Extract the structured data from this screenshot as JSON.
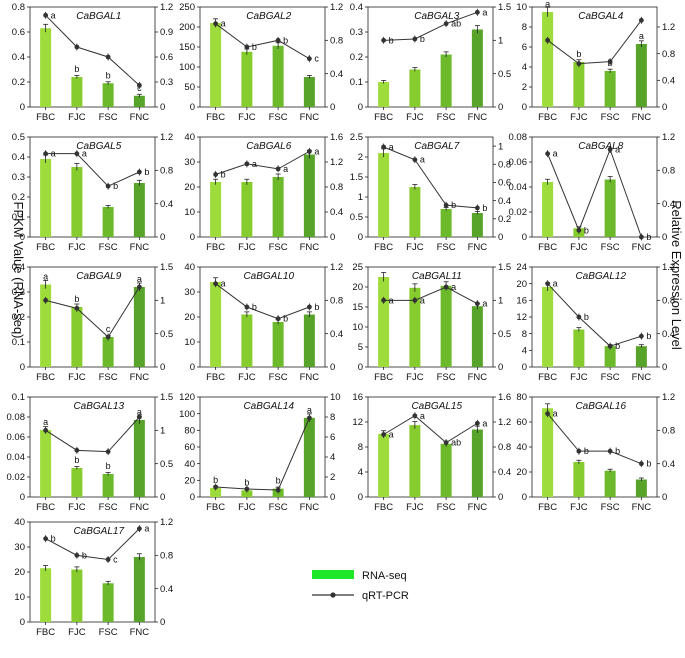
{
  "figure": {
    "left_axis_title": "FPKM Value (RNA-seq)",
    "right_axis_title": "Relative Expression Level",
    "legend": {
      "rna_seq": "RNA-seq",
      "qrt_pcr": "qRT-PCR"
    },
    "colors": {
      "FBC": "#9ddc3a",
      "FJC": "#86cc2e",
      "FSC": "#6cb92b",
      "FNC": "#58a42a",
      "line": "#333333"
    }
  },
  "chart_data": [
    {
      "type": "bar+line",
      "title": "CaBGAL1",
      "categories": [
        "FBC",
        "FJC",
        "FSC",
        "FNC"
      ],
      "left_ticks": [
        "0",
        "0.2",
        "0.4",
        "0.6",
        "0.8"
      ],
      "right_ticks": [
        "0",
        "0.3",
        "0.6",
        "0.9",
        "1.2"
      ],
      "ylim_left": [
        0,
        0.8
      ],
      "ylim_right": [
        0,
        1.2
      ],
      "bar_values": [
        0.63,
        0.24,
        0.19,
        0.09
      ],
      "line_values": [
        1.1,
        0.72,
        0.6,
        0.26
      ],
      "bar_letters": [
        "",
        "b",
        "b",
        "c"
      ],
      "line_letters": [
        "a",
        "",
        "",
        ""
      ]
    },
    {
      "type": "bar+line",
      "title": "CaBGAL2",
      "categories": [
        "FBC",
        "FJC",
        "FSC",
        "FNC"
      ],
      "left_ticks": [
        "0",
        "50",
        "100",
        "150",
        "200",
        "250"
      ],
      "right_ticks": [
        "0",
        "0.4",
        "0.8",
        "1.2"
      ],
      "ylim_left": [
        0,
        250
      ],
      "ylim_right": [
        0,
        1.2
      ],
      "bar_values": [
        210,
        138,
        153,
        75
      ],
      "line_values": [
        1.0,
        0.72,
        0.8,
        0.58
      ],
      "bar_letters": [
        "",
        "",
        "",
        ""
      ],
      "line_letters": [
        "a",
        "b",
        "b",
        "c"
      ]
    },
    {
      "type": "bar+line",
      "title": "CaBGAL3",
      "categories": [
        "FBC",
        "FJC",
        "FSC",
        "FNC"
      ],
      "left_ticks": [
        "0",
        "0.1",
        "0.2",
        "0.3",
        "0.4"
      ],
      "right_ticks": [
        "0",
        "0.5",
        "1",
        "1.5"
      ],
      "ylim_left": [
        0,
        0.4
      ],
      "ylim_right": [
        0,
        1.5
      ],
      "bar_values": [
        0.1,
        0.15,
        0.21,
        0.31
      ],
      "line_values": [
        1.0,
        1.02,
        1.25,
        1.42
      ],
      "bar_letters": [
        "",
        "",
        "",
        ""
      ],
      "line_letters": [
        "b",
        "b",
        "ab",
        "a"
      ]
    },
    {
      "type": "bar+line",
      "title": "CaBGAL4",
      "categories": [
        "FBC",
        "FJC",
        "FSC",
        "FNC"
      ],
      "left_ticks": [
        "0",
        "2",
        "4",
        "6",
        "8",
        "10"
      ],
      "right_ticks": [
        "0",
        "0.4",
        "0.8",
        "1.2"
      ],
      "ylim_left": [
        0,
        10
      ],
      "ylim_right": [
        0,
        1.5
      ],
      "bar_values": [
        9.5,
        4.5,
        3.6,
        6.3
      ],
      "line_values": [
        1.0,
        0.65,
        0.68,
        1.3
      ],
      "bar_letters": [
        "a",
        "b",
        "b",
        "a"
      ],
      "line_letters": [
        "",
        "",
        "",
        ""
      ]
    },
    {
      "type": "bar+line",
      "title": "CaBGAL5",
      "categories": [
        "FBC",
        "FJC",
        "FSC",
        "FNC"
      ],
      "left_ticks": [
        "0",
        "0.1",
        "0.2",
        "0.3",
        "0.4",
        "0.5"
      ],
      "right_ticks": [
        "0",
        "0.4",
        "0.8",
        "1.2"
      ],
      "ylim_left": [
        0,
        0.5
      ],
      "ylim_right": [
        0,
        1.2
      ],
      "bar_values": [
        0.39,
        0.35,
        0.15,
        0.27
      ],
      "line_values": [
        1.0,
        1.0,
        0.61,
        0.78
      ],
      "bar_letters": [
        "",
        "",
        "",
        ""
      ],
      "line_letters": [
        "a",
        "a",
        "b",
        "b"
      ]
    },
    {
      "type": "bar+line",
      "title": "CaBGAL6",
      "categories": [
        "FBC",
        "FJC",
        "FSC",
        "FNC"
      ],
      "left_ticks": [
        "0",
        "10",
        "20",
        "30",
        "40"
      ],
      "right_ticks": [
        "0",
        "0.4",
        "0.8",
        "1.2",
        "1.6"
      ],
      "ylim_left": [
        0,
        40
      ],
      "ylim_right": [
        0,
        1.6
      ],
      "bar_values": [
        22,
        22,
        24,
        33
      ],
      "line_values": [
        1.0,
        1.17,
        1.09,
        1.37
      ],
      "bar_letters": [
        "",
        "",
        "",
        ""
      ],
      "line_letters": [
        "b",
        "a",
        "a",
        "a"
      ]
    },
    {
      "type": "bar+line",
      "title": "CaBGAL7",
      "categories": [
        "FBC",
        "FJC",
        "FSC",
        "FNC"
      ],
      "left_ticks": [
        "0",
        "0.5",
        "1",
        "1.5",
        "2",
        "2.5"
      ],
      "right_ticks": [
        "0",
        "0.2",
        "0.4",
        "0.6",
        "0.8",
        "1"
      ],
      "ylim_left": [
        0,
        2.5
      ],
      "ylim_right": [
        0,
        1.1
      ],
      "bar_values": [
        2.1,
        1.25,
        0.7,
        0.6
      ],
      "line_values": [
        0.99,
        0.85,
        0.35,
        0.32
      ],
      "bar_letters": [
        "",
        "",
        "",
        ""
      ],
      "line_letters": [
        "a",
        "a",
        "b",
        "b"
      ]
    },
    {
      "type": "bar+line",
      "title": "CaBGAL8",
      "categories": [
        "FBC",
        "FJC",
        "FSC",
        "FNC"
      ],
      "left_ticks": [
        "0",
        "0.02",
        "0.04",
        "0.06",
        "0.08"
      ],
      "right_ticks": [
        "0",
        "0.4",
        "0.8",
        "1.2"
      ],
      "ylim_left": [
        0,
        0.08
      ],
      "ylim_right": [
        0,
        1.2
      ],
      "bar_values": [
        0.044,
        0.007,
        0.046,
        0.0
      ],
      "line_values": [
        1.0,
        0.08,
        1.05,
        0.0
      ],
      "bar_letters": [
        "",
        "",
        "",
        ""
      ],
      "line_letters": [
        "a",
        "b",
        "a",
        "b"
      ]
    },
    {
      "type": "bar+line",
      "title": "CaBGAL9",
      "categories": [
        "FBC",
        "FJC",
        "FSC",
        "FNC"
      ],
      "left_ticks": [
        "0",
        "0.1",
        "0.2",
        "0.3",
        "0.4"
      ],
      "right_ticks": [
        "0",
        "0.5",
        "1",
        "1.5"
      ],
      "ylim_left": [
        0,
        0.4
      ],
      "ylim_right": [
        0,
        1.5
      ],
      "bar_values": [
        0.33,
        0.24,
        0.12,
        0.32
      ],
      "line_values": [
        1.0,
        0.88,
        0.45,
        1.2
      ],
      "bar_letters": [
        "a",
        "b",
        "c",
        "a"
      ],
      "line_letters": [
        "",
        "",
        "",
        ""
      ]
    },
    {
      "type": "bar+line",
      "title": "CaBGAL10",
      "categories": [
        "FBC",
        "FJC",
        "FSC",
        "FNC"
      ],
      "left_ticks": [
        "0",
        "10",
        "20",
        "30",
        "40"
      ],
      "right_ticks": [
        "0",
        "0.4",
        "0.8",
        "1.2"
      ],
      "ylim_left": [
        0,
        40
      ],
      "ylim_right": [
        0,
        1.2
      ],
      "bar_values": [
        34,
        21,
        18,
        21
      ],
      "line_values": [
        1.0,
        0.72,
        0.58,
        0.72
      ],
      "bar_letters": [
        "",
        "",
        "",
        ""
      ],
      "line_letters": [
        "a",
        "b",
        "b",
        "b"
      ]
    },
    {
      "type": "bar+line",
      "title": "CaBGAL11",
      "categories": [
        "FBC",
        "FJC",
        "FSC",
        "FNC"
      ],
      "left_ticks": [
        "0",
        "5",
        "10",
        "15",
        "20",
        "25"
      ],
      "right_ticks": [
        "0",
        "0.5",
        "1",
        "1.5"
      ],
      "ylim_left": [
        0,
        25
      ],
      "ylim_right": [
        0,
        1.5
      ],
      "bar_values": [
        22.5,
        19.8,
        20.3,
        15.2
      ],
      "line_values": [
        1.0,
        1.0,
        1.2,
        0.95
      ],
      "bar_letters": [
        "",
        "",
        "",
        ""
      ],
      "line_letters": [
        "a",
        "a",
        "a",
        "a"
      ]
    },
    {
      "type": "bar+line",
      "title": "CaBGAL12",
      "categories": [
        "FBC",
        "FJC",
        "FSC",
        "FNC"
      ],
      "left_ticks": [
        "0",
        "4",
        "8",
        "12",
        "16",
        "20",
        "24"
      ],
      "right_ticks": [
        "0",
        "0.4",
        "0.8",
        "1.2"
      ],
      "ylim_left": [
        0,
        24
      ],
      "ylim_right": [
        0,
        1.2
      ],
      "bar_values": [
        19.2,
        9.0,
        5.0,
        5.0
      ],
      "line_values": [
        1.0,
        0.6,
        0.25,
        0.37
      ],
      "bar_letters": [
        "",
        "",
        "",
        ""
      ],
      "line_letters": [
        "a",
        "b",
        "b",
        "b"
      ]
    },
    {
      "type": "bar+line",
      "title": "CaBGAL13",
      "categories": [
        "FBC",
        "FJC",
        "FSC",
        "FNC"
      ],
      "left_ticks": [
        "0",
        "0.02",
        "0.04",
        "0.06",
        "0.08",
        "0.1"
      ],
      "right_ticks": [
        "0",
        "0.5",
        "1",
        "1.5"
      ],
      "ylim_left": [
        0,
        0.1
      ],
      "ylim_right": [
        0,
        1.5
      ],
      "bar_values": [
        0.067,
        0.029,
        0.023,
        0.077
      ],
      "line_values": [
        1.0,
        0.7,
        0.68,
        1.2
      ],
      "bar_letters": [
        "a",
        "b",
        "b",
        "a"
      ],
      "line_letters": [
        "",
        "",
        "",
        ""
      ]
    },
    {
      "type": "bar+line",
      "title": "CaBGAL14",
      "categories": [
        "FBC",
        "FJC",
        "FSC",
        "FNC"
      ],
      "left_ticks": [
        "0",
        "20",
        "40",
        "60",
        "80",
        "100",
        "120"
      ],
      "right_ticks": [
        "0",
        "2",
        "4",
        "6",
        "8",
        "10"
      ],
      "ylim_left": [
        0,
        120
      ],
      "ylim_right": [
        0,
        10
      ],
      "bar_values": [
        11,
        8,
        10,
        95
      ],
      "line_values": [
        1.0,
        0.8,
        0.7,
        7.9
      ],
      "bar_letters": [
        "b",
        "b",
        "b",
        "a"
      ],
      "line_letters": [
        "",
        "",
        "",
        ""
      ]
    },
    {
      "type": "bar+line",
      "title": "CaBGAL15",
      "categories": [
        "FBC",
        "FJC",
        "FSC",
        "FNC"
      ],
      "left_ticks": [
        "0",
        "4",
        "8",
        "12",
        "16"
      ],
      "right_ticks": [
        "0",
        "0.4",
        "0.8",
        "1.2",
        "1.6"
      ],
      "ylim_left": [
        0,
        16
      ],
      "ylim_right": [
        0,
        1.6
      ],
      "bar_values": [
        10.1,
        11.5,
        8.5,
        10.8
      ],
      "line_values": [
        1.0,
        1.3,
        0.87,
        1.18
      ],
      "bar_letters": [
        "",
        "",
        "",
        ""
      ],
      "line_letters": [
        "a",
        "a",
        "ab",
        "a"
      ]
    },
    {
      "type": "bar+line",
      "title": "CaBGAL16",
      "categories": [
        "FBC",
        "FJC",
        "FSC",
        "FNC"
      ],
      "left_ticks": [
        "0",
        "20",
        "40",
        "60",
        "80"
      ],
      "right_ticks": [
        "0",
        "0.4",
        "0.8",
        "1.2"
      ],
      "ylim_left": [
        0,
        80
      ],
      "ylim_right": [
        0,
        1.2
      ],
      "bar_values": [
        71,
        28,
        21,
        14
      ],
      "line_values": [
        1.0,
        0.55,
        0.55,
        0.4
      ],
      "bar_letters": [
        "",
        "",
        "",
        ""
      ],
      "line_letters": [
        "a",
        "b",
        "b",
        "b"
      ]
    },
    {
      "type": "bar+line",
      "title": "CaBGAL17",
      "categories": [
        "FBC",
        "FJC",
        "FSC",
        "FNC"
      ],
      "left_ticks": [
        "0",
        "10",
        "20",
        "30",
        "40"
      ],
      "right_ticks": [
        "0",
        "0.4",
        "0.8",
        "1.2"
      ],
      "ylim_left": [
        0,
        40
      ],
      "ylim_right": [
        0,
        1.2
      ],
      "bar_values": [
        21.5,
        21,
        15.5,
        26
      ],
      "line_values": [
        1.0,
        0.8,
        0.75,
        1.12
      ],
      "bar_letters": [
        "",
        "",
        "",
        ""
      ],
      "line_letters": [
        "b",
        "b",
        "c",
        "a"
      ]
    }
  ]
}
